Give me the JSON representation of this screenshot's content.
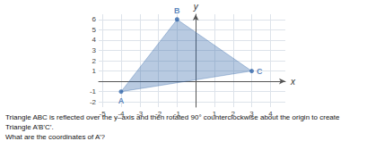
{
  "chart_data": {
    "type": "polygon",
    "x": [
      -4,
      -1,
      3
    ],
    "y": [
      -1,
      6,
      1
    ],
    "labels": [
      "A",
      "B",
      "C"
    ],
    "color": "#3366aa",
    "xlabel": "x",
    "ylabel": "y",
    "xlim": [
      -5.2,
      4.8
    ],
    "ylim": [
      -2.5,
      6.5
    ],
    "xticks": [
      -5,
      -4,
      -3,
      -2,
      -1,
      1,
      2,
      3,
      4
    ],
    "yticks": [
      -2,
      -1,
      1,
      2,
      3,
      4,
      5,
      6
    ],
    "grid": true,
    "annotations": [
      "Triangle ABC is reflected over the y–axis and then rotated 90° counterclockwise about the origin to create",
      "Triangle A’B’C’.",
      "What are the coordinates of A’?"
    ]
  }
}
